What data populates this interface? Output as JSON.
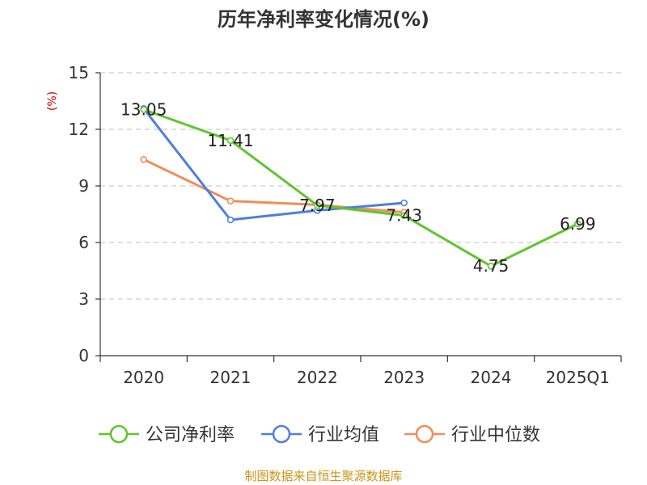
{
  "chart_data": {
    "type": "line",
    "title": "历年净利率变化情况(%)",
    "ylabel": "(%)",
    "xlabel": "",
    "categories": [
      "2020",
      "2021",
      "2022",
      "2023",
      "2024",
      "2025Q1"
    ],
    "ylim": [
      0,
      15
    ],
    "yticks": [
      0,
      3,
      6,
      9,
      12,
      15
    ],
    "grid": true,
    "legend_position": "bottom",
    "series": [
      {
        "name": "公司净利率",
        "color": "#5fc52e",
        "values": [
          13.05,
          11.41,
          7.97,
          7.43,
          4.75,
          6.99
        ],
        "labels": [
          "13.05",
          "11.41",
          "7.97",
          "7.43",
          "4.75",
          "6.99"
        ]
      },
      {
        "name": "行业均值",
        "color": "#4e7fde",
        "values": [
          13.1,
          7.2,
          7.7,
          8.1,
          null,
          null
        ],
        "labels": []
      },
      {
        "name": "行业中位数",
        "color": "#f28d58",
        "values": [
          10.4,
          8.2,
          8.0,
          7.6,
          null,
          null
        ],
        "labels": []
      }
    ]
  },
  "source": {
    "text": "制图数据来自恒生聚源数据库",
    "color": "#c8961a"
  }
}
